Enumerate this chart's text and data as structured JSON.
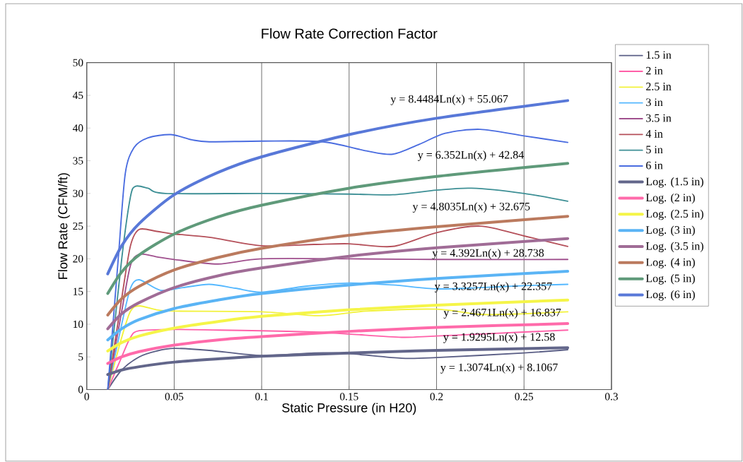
{
  "chart_data": {
    "type": "line",
    "title": "Flow Rate Correction Factor",
    "xlabel": "Static Pressure (in H20)",
    "ylabel": "Flow Rate (CFM/ft)",
    "xlim": [
      0,
      0.3
    ],
    "xticks": [
      0,
      0.05,
      0.1,
      0.15,
      0.2,
      0.25,
      0.3
    ],
    "ylim": [
      0,
      50
    ],
    "yticks": [
      0,
      5,
      10,
      15,
      20,
      25,
      30,
      35,
      40,
      45,
      50
    ],
    "grid": "x",
    "legend": "right",
    "marker": "none",
    "line_style": "solid",
    "series": [
      {
        "name": "1.5 in",
        "color": "#5b5f86",
        "x": [
          0.012,
          0.02,
          0.03,
          0.04,
          0.05,
          0.07,
          0.1,
          0.13,
          0.15,
          0.18,
          0.2,
          0.25,
          0.275
        ],
        "values": [
          0,
          3,
          5,
          5.9,
          6.3,
          6,
          5.2,
          5.6,
          5.5,
          4.8,
          4.9,
          5.6,
          6.1
        ]
      },
      {
        "name": "2 in",
        "color": "#ff5fa8",
        "x": [
          0.012,
          0.02,
          0.025,
          0.03,
          0.05,
          0.075,
          0.1,
          0.13,
          0.15,
          0.18,
          0.2,
          0.25,
          0.275
        ],
        "values": [
          0,
          5,
          8,
          9,
          9.2,
          9.1,
          9,
          8.8,
          8.5,
          8,
          8.2,
          8.8,
          9.1
        ]
      },
      {
        "name": "2.5 in",
        "color": "#f2f23a",
        "x": [
          0.012,
          0.02,
          0.025,
          0.03,
          0.04,
          0.05,
          0.1,
          0.133,
          0.16,
          0.2,
          0.225,
          0.25,
          0.275
        ],
        "values": [
          0,
          8,
          12,
          12.8,
          12.2,
          12,
          11.9,
          11.3,
          12,
          12.3,
          11.5,
          11.6,
          11.9
        ]
      },
      {
        "name": "3 in",
        "color": "#55b8ff",
        "x": [
          0.012,
          0.02,
          0.025,
          0.03,
          0.042,
          0.055,
          0.07,
          0.085,
          0.1,
          0.125,
          0.15,
          0.175,
          0.2,
          0.225,
          0.25,
          0.275
        ],
        "values": [
          0,
          10,
          15.5,
          16.8,
          15.2,
          15.6,
          16.1,
          15.5,
          14.9,
          15.8,
          16.3,
          16,
          15.4,
          15.6,
          15.9,
          16.1
        ]
      },
      {
        "name": "3.5 in",
        "color": "#a0508e",
        "x": [
          0.012,
          0.02,
          0.025,
          0.03,
          0.04,
          0.05,
          0.075,
          0.1,
          0.15,
          0.2,
          0.275
        ],
        "values": [
          0,
          12,
          19,
          20.7,
          20.3,
          19.9,
          19.2,
          20,
          20,
          19.9,
          19.9
        ]
      },
      {
        "name": "4 in",
        "color": "#b5505a",
        "x": [
          0.012,
          0.02,
          0.025,
          0.03,
          0.04,
          0.05,
          0.07,
          0.1,
          0.13,
          0.15,
          0.175,
          0.2,
          0.225,
          0.25,
          0.275
        ],
        "values": [
          0,
          14,
          22,
          24.5,
          24.2,
          23.8,
          23.3,
          22,
          22.2,
          22.3,
          21.9,
          24,
          25,
          23.5,
          21.9
        ]
      },
      {
        "name": "5 in",
        "color": "#3d8f95",
        "x": [
          0.012,
          0.02,
          0.025,
          0.028,
          0.035,
          0.045,
          0.1,
          0.15,
          0.175,
          0.2,
          0.22,
          0.25,
          0.275
        ],
        "values": [
          0,
          20,
          29.5,
          31.1,
          30.8,
          30,
          30,
          29.9,
          29.8,
          30.5,
          30.8,
          30,
          28.8
        ]
      },
      {
        "name": "6 in",
        "color": "#4a6ce0",
        "x": [
          0.012,
          0.018,
          0.022,
          0.027,
          0.035,
          0.048,
          0.06,
          0.07,
          0.1,
          0.135,
          0.16,
          0.175,
          0.19,
          0.205,
          0.225,
          0.25,
          0.275
        ],
        "values": [
          0,
          20,
          33,
          37,
          38.5,
          39,
          38.2,
          37.9,
          38,
          37.9,
          36.5,
          36,
          37.5,
          39.2,
          39.8,
          38.8,
          37.8
        ]
      },
      {
        "name": "Log. (1.5 in)",
        "color": "#62668a",
        "x": [
          0.012,
          0.02,
          0.03,
          0.05,
          0.075,
          0.1,
          0.15,
          0.2,
          0.275
        ],
        "values": [
          2.3,
          3.0,
          3.5,
          4.2,
          4.7,
          5.1,
          5.6,
          6.0,
          6.4
        ]
      },
      {
        "name": "Log. (2 in)",
        "color": "#ff6aaa",
        "x": [
          0.012,
          0.02,
          0.03,
          0.05,
          0.075,
          0.1,
          0.15,
          0.2,
          0.275
        ],
        "values": [
          4.0,
          5.0,
          5.8,
          6.8,
          7.6,
          8.1,
          8.9,
          9.5,
          10.1
        ]
      },
      {
        "name": "Log. (2.5 in)",
        "color": "#f5f548",
        "x": [
          0.012,
          0.02,
          0.03,
          0.05,
          0.075,
          0.1,
          0.15,
          0.2,
          0.275
        ],
        "values": [
          5.9,
          7.2,
          8.2,
          9.4,
          10.4,
          11.2,
          12.2,
          12.9,
          13.7
        ]
      },
      {
        "name": "Log. (3 in)",
        "color": "#5ab4f5",
        "x": [
          0.012,
          0.02,
          0.03,
          0.05,
          0.075,
          0.1,
          0.15,
          0.2,
          0.275
        ],
        "values": [
          7.6,
          9.3,
          10.7,
          12.4,
          13.7,
          14.7,
          16.0,
          17.0,
          18.1
        ]
      },
      {
        "name": "Log. (3.5 in)",
        "color": "#a06c96",
        "x": [
          0.012,
          0.02,
          0.03,
          0.05,
          0.075,
          0.1,
          0.15,
          0.2,
          0.275
        ],
        "values": [
          9.3,
          11.6,
          13.3,
          15.6,
          17.4,
          18.6,
          20.4,
          21.7,
          23.1
        ]
      },
      {
        "name": "Log. (4 in)",
        "color": "#bb7a5e",
        "x": [
          0.012,
          0.02,
          0.03,
          0.05,
          0.075,
          0.1,
          0.15,
          0.2,
          0.275
        ],
        "values": [
          11.4,
          13.9,
          15.8,
          18.3,
          20.2,
          21.6,
          23.6,
          24.9,
          26.5
        ]
      },
      {
        "name": "Log. (5 in)",
        "color": "#5f9a7a",
        "x": [
          0.012,
          0.02,
          0.03,
          0.05,
          0.075,
          0.1,
          0.15,
          0.2,
          0.275
        ],
        "values": [
          14.7,
          18.0,
          20.6,
          23.8,
          26.4,
          28.2,
          30.8,
          32.6,
          34.6
        ]
      },
      {
        "name": "Log. (6 in)",
        "color": "#5878d8",
        "x": [
          0.012,
          0.02,
          0.03,
          0.05,
          0.075,
          0.1,
          0.15,
          0.2,
          0.275
        ],
        "values": [
          17.7,
          22.0,
          25.4,
          29.8,
          33.2,
          35.6,
          39.0,
          41.5,
          44.2
        ]
      }
    ],
    "annotations": [
      "y = 8.4484Ln(x) + 55.067",
      "y = 6.352Ln(x) + 42.84",
      "y = 4.8035Ln(x) + 32.675",
      "y = 4.392Ln(x) + 28.738",
      "y = 3.3257Ln(x) + 22.357",
      "y = 2.4671Ln(x) + 16.837",
      "y = 1.9295Ln(x) + 12.58",
      "y = 1.3074Ln(x) + 8.1067"
    ]
  }
}
